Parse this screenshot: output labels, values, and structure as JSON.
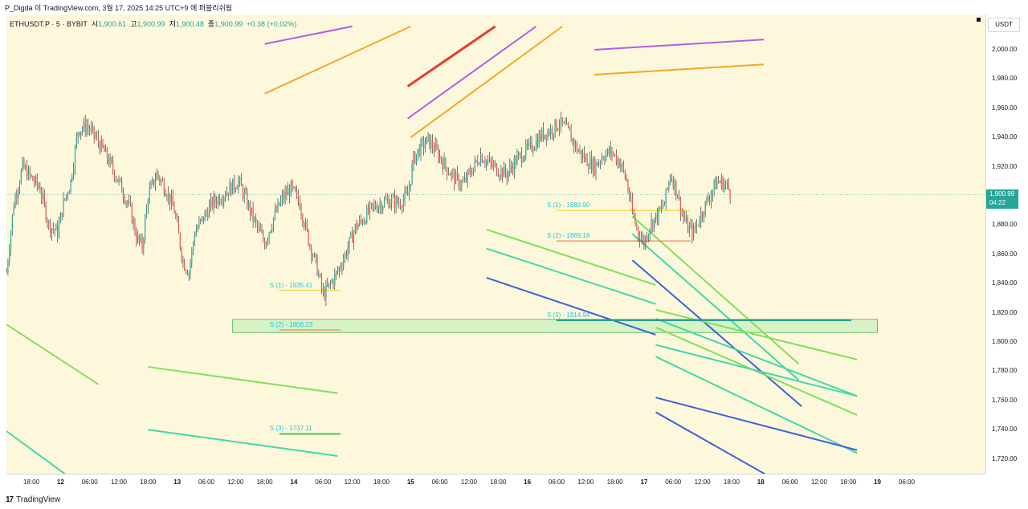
{
  "header": {
    "attribution": "P_Digda 이 TradingView.com, 3월 17, 2025 14:25 UTC+9 에 퍼블리쉬됨"
  },
  "legend": {
    "symbol": "ETHUSDT.P · 5 · BYBIT",
    "open_label": "시",
    "open": "1,900.61",
    "high_label": "고",
    "high": "1,900.99",
    "low_label": "저",
    "low": "1,900.48",
    "close_label": "종",
    "close": "1,900.99",
    "change": "+0.38 (+0.02%)"
  },
  "price_scale": {
    "currency_button": "USDT",
    "current_price": "1,900.99",
    "countdown": "04:22"
  },
  "footer": {
    "brand": "TradingView"
  },
  "colors": {
    "bullish": "#26a69a",
    "bearish": "#ef5350",
    "background": "#fdf8dc",
    "support_label": "#26c6da",
    "green_line": "#7ee05a",
    "teal_line": "#3fd9a8",
    "blue_line": "#3a63d9",
    "purple_line": "#b35ee8",
    "orange_line": "#f5a623",
    "red_line": "#e53935"
  },
  "chart_data": {
    "type": "line",
    "title": "",
    "xlabel": "",
    "ylabel": "",
    "ylim": [
      1708,
      2016
    ],
    "y_ticks": [
      1720,
      1740,
      1760,
      1780,
      1800,
      1820,
      1840,
      1860,
      1880,
      1900,
      1920,
      1940,
      1960,
      1980,
      2000
    ],
    "y_tick_labels": [
      "1,720.00",
      "1,740.00",
      "1,760.00",
      "1,780.00",
      "1,800.00",
      "1,820.00",
      "1,840.00",
      "1,860.00",
      "1,880.00",
      "1,900.00",
      "1,920.00",
      "1,940.00",
      "1,960.00",
      "1,980.00",
      "2,000.00"
    ],
    "x_ticks": [
      {
        "label": "18:00",
        "t": 0,
        "bold": false
      },
      {
        "label": "12",
        "t": 1,
        "bold": true
      },
      {
        "label": "06:00",
        "t": 2,
        "bold": false
      },
      {
        "label": "12:00",
        "t": 3,
        "bold": false
      },
      {
        "label": "18:00",
        "t": 4,
        "bold": false
      },
      {
        "label": "13",
        "t": 5,
        "bold": true
      },
      {
        "label": "06:00",
        "t": 6,
        "bold": false
      },
      {
        "label": "12:00",
        "t": 7,
        "bold": false
      },
      {
        "label": "18:00",
        "t": 8,
        "bold": false
      },
      {
        "label": "14",
        "t": 9,
        "bold": true
      },
      {
        "label": "06:00",
        "t": 10,
        "bold": false
      },
      {
        "label": "12:00",
        "t": 11,
        "bold": false
      },
      {
        "label": "18:00",
        "t": 12,
        "bold": false
      },
      {
        "label": "15",
        "t": 13,
        "bold": true
      },
      {
        "label": "06:00",
        "t": 14,
        "bold": false
      },
      {
        "label": "12:00",
        "t": 15,
        "bold": false
      },
      {
        "label": "18:00",
        "t": 16,
        "bold": false
      },
      {
        "label": "16",
        "t": 17,
        "bold": true
      },
      {
        "label": "06:00",
        "t": 18,
        "bold": false
      },
      {
        "label": "12:00",
        "t": 19,
        "bold": false
      },
      {
        "label": "18:00",
        "t": 20,
        "bold": false
      },
      {
        "label": "17",
        "t": 21,
        "bold": true
      },
      {
        "label": "06:00",
        "t": 22,
        "bold": false
      },
      {
        "label": "12:00",
        "t": 23,
        "bold": false
      },
      {
        "label": "18:00",
        "t": 24,
        "bold": false
      },
      {
        "label": "18",
        "t": 25,
        "bold": true
      },
      {
        "label": "06:00",
        "t": 26,
        "bold": false
      },
      {
        "label": "12:00",
        "t": 27,
        "bold": false
      },
      {
        "label": "18:00",
        "t": 28,
        "bold": false
      },
      {
        "label": "19",
        "t": 29,
        "bold": true
      },
      {
        "label": "06:00",
        "t": 30,
        "bold": false
      }
    ],
    "x_unit": "6-hour steps from first tick",
    "price_path": [
      [
        -0.85,
        1848
      ],
      [
        -0.6,
        1895
      ],
      [
        -0.3,
        1920
      ],
      [
        0.0,
        1912
      ],
      [
        0.3,
        1905
      ],
      [
        0.6,
        1880
      ],
      [
        0.9,
        1875
      ],
      [
        1.1,
        1895
      ],
      [
        1.35,
        1910
      ],
      [
        1.6,
        1945
      ],
      [
        1.9,
        1948
      ],
      [
        2.2,
        1940
      ],
      [
        2.5,
        1930
      ],
      [
        2.8,
        1918
      ],
      [
        3.1,
        1905
      ],
      [
        3.4,
        1890
      ],
      [
        3.6,
        1872
      ],
      [
        3.8,
        1865
      ],
      [
        4.0,
        1900
      ],
      [
        4.3,
        1915
      ],
      [
        4.6,
        1905
      ],
      [
        4.9,
        1890
      ],
      [
        5.2,
        1855
      ],
      [
        5.4,
        1848
      ],
      [
        5.6,
        1875
      ],
      [
        5.9,
        1885
      ],
      [
        6.2,
        1895
      ],
      [
        6.5,
        1900
      ],
      [
        6.8,
        1905
      ],
      [
        7.1,
        1910
      ],
      [
        7.4,
        1895
      ],
      [
        7.7,
        1880
      ],
      [
        8.0,
        1868
      ],
      [
        8.3,
        1885
      ],
      [
        8.6,
        1898
      ],
      [
        8.9,
        1905
      ],
      [
        9.2,
        1895
      ],
      [
        9.5,
        1870
      ],
      [
        9.8,
        1850
      ],
      [
        10.0,
        1832
      ],
      [
        10.2,
        1838
      ],
      [
        10.5,
        1848
      ],
      [
        10.8,
        1862
      ],
      [
        11.1,
        1878
      ],
      [
        11.4,
        1885
      ],
      [
        11.7,
        1892
      ],
      [
        12.0,
        1895
      ],
      [
        12.3,
        1897
      ],
      [
        12.6,
        1895
      ],
      [
        12.9,
        1900
      ],
      [
        13.1,
        1925
      ],
      [
        13.3,
        1932
      ],
      [
        13.6,
        1938
      ],
      [
        13.9,
        1930
      ],
      [
        14.2,
        1920
      ],
      [
        14.5,
        1912
      ],
      [
        14.8,
        1908
      ],
      [
        15.1,
        1918
      ],
      [
        15.4,
        1928
      ],
      [
        15.7,
        1922
      ],
      [
        16.0,
        1918
      ],
      [
        16.3,
        1915
      ],
      [
        16.6,
        1924
      ],
      [
        16.9,
        1930
      ],
      [
        17.2,
        1935
      ],
      [
        17.5,
        1942
      ],
      [
        17.8,
        1945
      ],
      [
        18.1,
        1950
      ],
      [
        18.4,
        1944
      ],
      [
        18.7,
        1932
      ],
      [
        19.0,
        1925
      ],
      [
        19.3,
        1920
      ],
      [
        19.6,
        1928
      ],
      [
        19.9,
        1930
      ],
      [
        20.2,
        1922
      ],
      [
        20.4,
        1910
      ],
      [
        20.6,
        1888
      ],
      [
        20.8,
        1875
      ],
      [
        21.0,
        1868
      ],
      [
        21.2,
        1880
      ],
      [
        21.5,
        1888
      ],
      [
        21.7,
        1895
      ],
      [
        21.9,
        1915
      ],
      [
        22.1,
        1905
      ],
      [
        22.3,
        1888
      ],
      [
        22.5,
        1878
      ],
      [
        22.7,
        1875
      ],
      [
        22.9,
        1885
      ],
      [
        23.2,
        1898
      ],
      [
        23.5,
        1910
      ],
      [
        23.8,
        1908
      ],
      [
        24.0,
        1900.99
      ]
    ],
    "series_annotations": [
      {
        "label": "S (1) - 1835.41",
        "y": 1835.41,
        "t0": 8.5,
        "t1": 10.6,
        "line_color": "#f0d84a"
      },
      {
        "label": "S (2) - 1808.23",
        "y": 1808.23,
        "t0": 8.5,
        "t1": 10.6,
        "line_color": "#f08a5a"
      },
      {
        "label": "S (3) - 1737.11",
        "y": 1737.11,
        "t0": 8.5,
        "t1": 10.6,
        "line_color": "#43c85c"
      },
      {
        "label": "S (1) - 1889.90",
        "y": 1889.9,
        "t0": 18.0,
        "t1": 22.6,
        "line_color": "#f0d84a"
      },
      {
        "label": "S (2) - 1869.18",
        "y": 1869.18,
        "t0": 18.0,
        "t1": 22.6,
        "line_color": "#f08a5a"
      },
      {
        "label": "S (3) - 1814.94",
        "y": 1814.94,
        "t0": 18.0,
        "t1": 28.1,
        "line_color": "#2e9e8e"
      }
    ],
    "zone": {
      "y_low": 1806.5,
      "y_high": 1815.5,
      "t0": 6.9,
      "t1": 29.0
    },
    "current_price": 1900.99
  },
  "trendlines": [
    {
      "color": "#b35ee8",
      "p1": [
        8.0,
        2004
      ],
      "p2": [
        11.0,
        2016
      ]
    },
    {
      "color": "#f5a623",
      "p1": [
        8.0,
        1970
      ],
      "p2": [
        13.0,
        2016
      ]
    },
    {
      "color": "#e53935",
      "p1": [
        12.9,
        1975
      ],
      "p2": [
        15.9,
        2016
      ]
    },
    {
      "color": "#b35ee8",
      "p1": [
        12.9,
        1953
      ],
      "p2": [
        17.3,
        2016
      ]
    },
    {
      "color": "#f5a623",
      "p1": [
        13.0,
        1940
      ],
      "p2": [
        18.2,
        2016
      ]
    },
    {
      "color": "#b35ee8",
      "p1": [
        19.3,
        2000
      ],
      "p2": [
        25.1,
        2007
      ]
    },
    {
      "color": "#f5a623",
      "p1": [
        19.3,
        1983
      ],
      "p2": [
        25.1,
        1990
      ]
    },
    {
      "color": "#7ee05a",
      "p1": [
        -0.85,
        1812
      ],
      "p2": [
        2.3,
        1771
      ]
    },
    {
      "color": "#7ee05a",
      "p1": [
        4.0,
        1783
      ],
      "p2": [
        10.5,
        1765
      ]
    },
    {
      "color": "#3fd9a8",
      "p1": [
        4.0,
        1740
      ],
      "p2": [
        10.5,
        1722
      ]
    },
    {
      "color": "#3fd9a8",
      "p1": [
        -0.85,
        1739
      ],
      "p2": [
        1.2,
        1709
      ]
    },
    {
      "color": "#7ee05a",
      "p1": [
        15.6,
        1877
      ],
      "p2": [
        21.4,
        1839
      ]
    },
    {
      "color": "#3fd9a8",
      "p1": [
        15.6,
        1864
      ],
      "p2": [
        21.4,
        1826
      ]
    },
    {
      "color": "#3a63d9",
      "p1": [
        15.6,
        1844
      ],
      "p2": [
        21.4,
        1805
      ]
    },
    {
      "color": "#7ee05a",
      "p1": [
        20.6,
        1886
      ],
      "p2": [
        26.3,
        1785
      ]
    },
    {
      "color": "#3fd9a8",
      "p1": [
        20.6,
        1874
      ],
      "p2": [
        26.3,
        1774
      ]
    },
    {
      "color": "#3a63d9",
      "p1": [
        20.6,
        1856
      ],
      "p2": [
        26.4,
        1756
      ]
    },
    {
      "color": "#7ee05a",
      "p1": [
        21.4,
        1822
      ],
      "p2": [
        28.3,
        1788
      ]
    },
    {
      "color": "#3fd9a8",
      "p1": [
        21.4,
        1816
      ],
      "p2": [
        28.3,
        1763
      ]
    },
    {
      "color": "#7ee05a",
      "p1": [
        21.4,
        1810
      ],
      "p2": [
        28.3,
        1750
      ]
    },
    {
      "color": "#3fd9a8",
      "p1": [
        21.4,
        1798
      ],
      "p2": [
        28.3,
        1763
      ]
    },
    {
      "color": "#3fd9a8",
      "p1": [
        21.4,
        1790
      ],
      "p2": [
        28.3,
        1724
      ]
    },
    {
      "color": "#3a63d9",
      "p1": [
        21.4,
        1762
      ],
      "p2": [
        28.3,
        1726
      ]
    },
    {
      "color": "#3a63d9",
      "p1": [
        21.4,
        1752
      ],
      "p2": [
        25.2,
        1709
      ]
    }
  ]
}
